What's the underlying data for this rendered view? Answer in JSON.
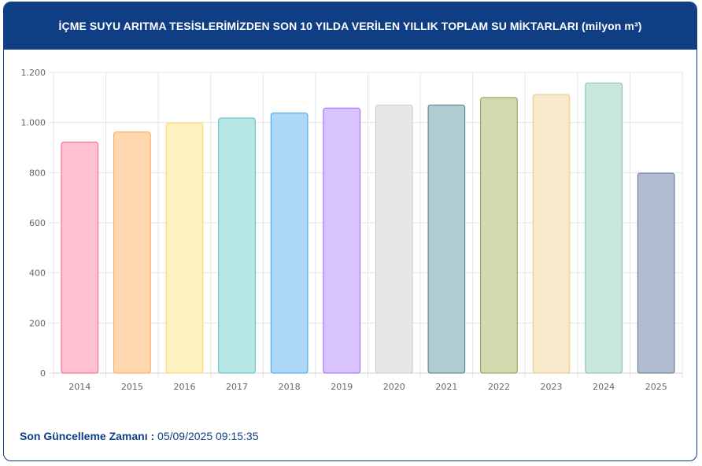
{
  "header": {
    "title": "İÇME SUYU ARITMA TESİSLERİMİZDEN SON 10 YILDA VERİLEN YILLIK TOPLAM SU MİKTARLARI (milyon m³)"
  },
  "footer": {
    "label": "Son Güncelleme Zamanı :",
    "value": "05/09/2025 09:15:35"
  },
  "colors": {
    "brand": "#0f3e85"
  },
  "chart_data": {
    "type": "bar",
    "title": "İÇME SUYU ARITMA TESİSLERİMİZDEN SON 10 YILDA VERİLEN YILLIK TOPLAM SU MİKTARLARI (milyon m³)",
    "xlabel": "",
    "ylabel": "",
    "categories": [
      "2014",
      "2015",
      "2016",
      "2017",
      "2018",
      "2019",
      "2020",
      "2021",
      "2022",
      "2023",
      "2024",
      "2025"
    ],
    "values": [
      922,
      962,
      998,
      1018,
      1038,
      1058,
      1070,
      1070,
      1100,
      1112,
      1158,
      798
    ],
    "ylim": [
      0,
      1200
    ],
    "yticks": [
      0,
      200,
      400,
      600,
      800,
      1000,
      1200
    ],
    "ytick_labels": [
      "0",
      "200",
      "400",
      "600",
      "800",
      "1.000",
      "1.200"
    ],
    "grid": true,
    "legend": "none",
    "bar_fills": [
      "#ffc0cf",
      "#ffd8b0",
      "#fff0bf",
      "#b7e6e6",
      "#aed8f7",
      "#d8c3ff",
      "#e6e7e9",
      "#b1cbd2",
      "#d5d9b1",
      "#f7e9c9",
      "#c9e7de",
      "#b0bdd0"
    ],
    "bar_strokes": [
      "#ff5e7e",
      "#ffa15a",
      "#ffd35e",
      "#4fc0c0",
      "#36a2eb",
      "#9966ff",
      "#c9cbcf",
      "#527a86",
      "#8a9a40",
      "#e9c77f",
      "#7ac3a7",
      "#5d7196"
    ]
  }
}
